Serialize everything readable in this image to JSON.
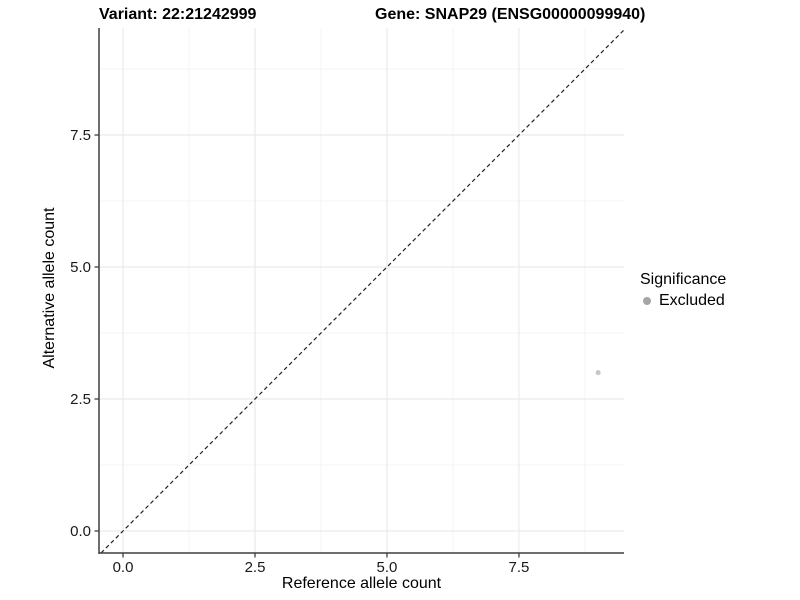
{
  "header": {
    "variant_title": "Variant: 22:21242999",
    "gene_title": "Gene: SNAP29 (ENSG00000099940)"
  },
  "chart_data": {
    "type": "scatter",
    "xlabel": "Reference allele count",
    "ylabel": "Alternative allele count",
    "xlim": [
      -0.455,
      9.49
    ],
    "ylim": [
      -0.417,
      9.527
    ],
    "xticks": {
      "values": [
        0,
        2.5,
        5,
        7.5
      ],
      "labels": [
        "0.0",
        "2.5",
        "5.0",
        "7.5"
      ]
    },
    "yticks": {
      "values": [
        0,
        2.5,
        5,
        7.5
      ],
      "labels": [
        "0.0",
        "2.5",
        "5.0",
        "7.5"
      ]
    },
    "minor_ticks_x": [
      1.25,
      3.75,
      6.25,
      8.75
    ],
    "minor_ticks_y": [
      1.25,
      3.75,
      6.25,
      8.75
    ],
    "grid": "major+minor",
    "reference_line": {
      "type": "identity",
      "slope": 1,
      "intercept": 0,
      "style": "dashed"
    },
    "series": [
      {
        "name": "Excluded",
        "color": "#c5c5c5",
        "size": 2.5,
        "points": [
          {
            "x": 9,
            "y": 3
          }
        ]
      }
    ],
    "legend": {
      "title": "Significance",
      "position": "right",
      "entries": [
        {
          "label": "Excluded",
          "color": "#a6a6a6",
          "icon": "dot-icon"
        }
      ]
    }
  },
  "colors": {
    "background": "#ffffff",
    "grid_major": "#eaeaea",
    "grid_minor": "#f4f4f4",
    "axis": "#3f3f3f",
    "tick_label": "#1a1a1a",
    "text": "#000000",
    "reference_line": "#222222"
  }
}
